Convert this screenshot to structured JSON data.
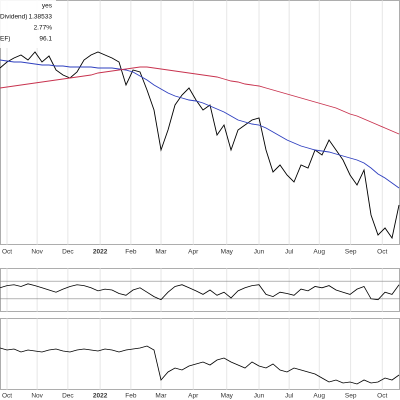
{
  "header": {
    "rows": [
      {
        "value": "yes"
      },
      {
        "label": "Dividend)",
        "value": "1.38533"
      },
      {
        "value": "2.77%"
      },
      {
        "label": "EF)",
        "value": "96.1"
      }
    ]
  },
  "chart_data": [
    {
      "type": "line",
      "x": [
        0,
        1,
        2,
        3,
        4,
        5,
        6,
        7,
        8,
        9,
        10,
        11,
        12,
        13,
        14,
        15,
        16,
        17,
        18,
        19,
        20,
        21,
        22,
        23,
        24,
        25,
        26,
        27,
        28,
        29,
        30,
        31,
        32,
        33,
        34,
        35,
        36,
        37,
        38,
        39,
        40,
        41,
        42,
        43,
        44,
        45,
        46,
        47,
        48,
        49,
        50,
        51,
        52,
        53,
        54,
        55,
        56,
        57
      ],
      "xlim": [
        0,
        57.14
      ],
      "xticks": [
        {
          "value": 1,
          "label": "Oct"
        },
        {
          "value": 5.3,
          "label": "Nov"
        },
        {
          "value": 9.7,
          "label": "Dec"
        },
        {
          "value": 14.3,
          "label": "2022"
        },
        {
          "value": 18.7,
          "label": "Feb"
        },
        {
          "value": 23,
          "label": "Mar"
        },
        {
          "value": 27.6,
          "label": "Apr"
        },
        {
          "value": 32.4,
          "label": "May"
        },
        {
          "value": 37,
          "label": "Jun"
        },
        {
          "value": 41.3,
          "label": "Jul"
        },
        {
          "value": 45.6,
          "label": "Aug"
        },
        {
          "value": 50.1,
          "label": "Sep"
        },
        {
          "value": 54.6,
          "label": "Oct"
        }
      ],
      "ylim": [
        0,
        245
      ],
      "grid": true,
      "series": [
        {
          "color": "#000000",
          "values": [
            177,
            183,
            187,
            190,
            185,
            193,
            183,
            189,
            175,
            170,
            167,
            173,
            185,
            190,
            193,
            190,
            187,
            183,
            160,
            175,
            173,
            155,
            135,
            95,
            115,
            140,
            150,
            157,
            145,
            135,
            140,
            110,
            120,
            95,
            115,
            120,
            125,
            127,
            95,
            73,
            80,
            70,
            63,
            80,
            77,
            95,
            90,
            105,
            95,
            85,
            70,
            60,
            75,
            30,
            10,
            17,
            7,
            40
          ]
        },
        {
          "color": "#2e3fbf",
          "values": [
            185,
            184,
            183,
            183,
            182,
            181,
            180,
            180,
            179,
            179,
            178,
            178,
            178,
            178,
            177,
            177,
            177,
            176,
            175,
            173,
            169,
            165,
            160,
            156,
            152,
            149,
            147,
            145,
            144,
            142,
            139,
            136,
            133,
            129,
            125,
            123,
            121,
            120,
            117,
            113,
            109,
            105,
            102,
            99,
            97,
            95,
            94,
            93,
            91,
            89,
            87,
            85,
            82,
            77,
            71,
            67,
            62,
            57
          ]
        },
        {
          "color": "#c8324e",
          "values": [
            157,
            158,
            159,
            160,
            161,
            162,
            163,
            164,
            165,
            166,
            167,
            168,
            169,
            170,
            172,
            173,
            174,
            175,
            176,
            177,
            178,
            178,
            177,
            176,
            175,
            174,
            173,
            172,
            171,
            170,
            169,
            168,
            166,
            164,
            163,
            161,
            160,
            159,
            157,
            155,
            153,
            151,
            149,
            147,
            145,
            143,
            141,
            139,
            137,
            134,
            131,
            129,
            126,
            123,
            120,
            117,
            114,
            111
          ]
        }
      ]
    },
    {
      "type": "line",
      "x": [
        0,
        1,
        2,
        3,
        4,
        5,
        6,
        7,
        8,
        9,
        10,
        11,
        12,
        13,
        14,
        15,
        16,
        17,
        18,
        19,
        20,
        21,
        22,
        23,
        24,
        25,
        26,
        27,
        28,
        29,
        30,
        31,
        32,
        33,
        34,
        35,
        36,
        37,
        38,
        39,
        40,
        41,
        42,
        43,
        44,
        45,
        46,
        47,
        48,
        49,
        50,
        51,
        52,
        53,
        54,
        55,
        56,
        57
      ],
      "xlim": [
        0,
        57.14
      ],
      "ylim": [
        0,
        100
      ],
      "ref_lines": [
        30,
        70
      ],
      "series": [
        {
          "color": "#000000",
          "values": [
            55,
            60,
            62,
            58,
            64,
            60,
            55,
            50,
            45,
            52,
            58,
            62,
            60,
            55,
            48,
            52,
            50,
            42,
            38,
            50,
            55,
            45,
            35,
            28,
            45,
            58,
            62,
            55,
            48,
            40,
            50,
            38,
            45,
            32,
            48,
            55,
            60,
            62,
            40,
            35,
            45,
            42,
            38,
            52,
            48,
            58,
            55,
            60,
            50,
            45,
            40,
            52,
            58,
            30,
            28,
            45,
            40,
            62
          ]
        }
      ]
    },
    {
      "type": "line",
      "x": [
        0,
        1,
        2,
        3,
        4,
        5,
        6,
        7,
        8,
        9,
        10,
        11,
        12,
        13,
        14,
        15,
        16,
        17,
        18,
        19,
        20,
        21,
        22,
        23,
        24,
        25,
        26,
        27,
        28,
        29,
        30,
        31,
        32,
        33,
        34,
        35,
        36,
        37,
        38,
        39,
        40,
        41,
        42,
        43,
        44,
        45,
        46,
        47,
        48,
        49,
        50,
        51,
        52,
        53,
        54,
        55,
        56,
        57
      ],
      "xlim": [
        0,
        57.14
      ],
      "xticks": [
        {
          "value": 1,
          "label": "Oct"
        },
        {
          "value": 5.3,
          "label": "Nov"
        },
        {
          "value": 9.7,
          "label": "Dec"
        },
        {
          "value": 14.3,
          "label": "2022"
        },
        {
          "value": 18.7,
          "label": "Feb"
        },
        {
          "value": 23,
          "label": "Mar"
        },
        {
          "value": 27.6,
          "label": "Apr"
        },
        {
          "value": 32.4,
          "label": "May"
        },
        {
          "value": 37,
          "label": "Jun"
        },
        {
          "value": 41.3,
          "label": "Jul"
        },
        {
          "value": 45.6,
          "label": "Aug"
        },
        {
          "value": 50.1,
          "label": "Sep"
        },
        {
          "value": 54.6,
          "label": "Oct"
        }
      ],
      "ylim": [
        0,
        72
      ],
      "grid": true,
      "series": [
        {
          "color": "#000000",
          "values": [
            42,
            40,
            41,
            38,
            40,
            39,
            38,
            40,
            41,
            39,
            38,
            40,
            41,
            40,
            39,
            41,
            40,
            38,
            40,
            41,
            42,
            44,
            40,
            10,
            18,
            22,
            20,
            24,
            26,
            28,
            25,
            30,
            32,
            28,
            25,
            22,
            28,
            24,
            22,
            26,
            20,
            18,
            22,
            20,
            18,
            16,
            12,
            8,
            10,
            7,
            8,
            6,
            10,
            7,
            8,
            12,
            10,
            15
          ]
        }
      ]
    }
  ]
}
